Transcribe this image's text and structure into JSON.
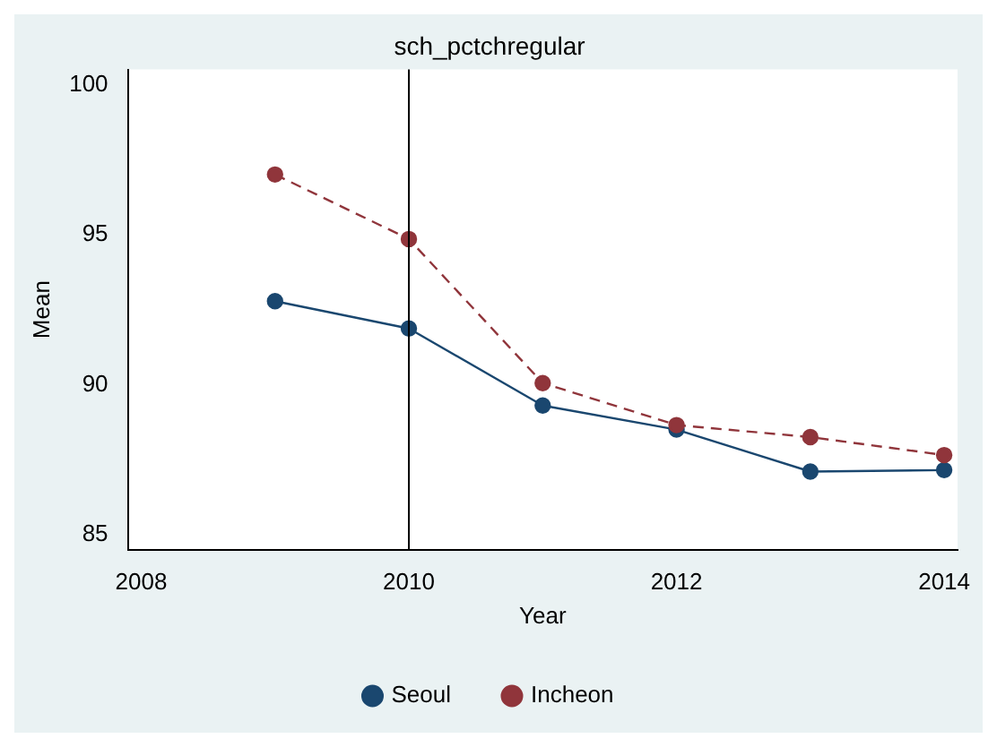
{
  "chart_data": {
    "type": "line",
    "title": "sch_pctchregular",
    "xlabel": "Year",
    "ylabel": "Mean",
    "x": [
      2009,
      2010,
      2011,
      2012,
      2013,
      2014
    ],
    "series": [
      {
        "name": "Seoul",
        "color": "#1a476f",
        "values": [
          92.78,
          91.87,
          89.3,
          88.5,
          87.1,
          87.15
        ],
        "line_style": "solid"
      },
      {
        "name": "Incheon",
        "color": "#90353b",
        "values": [
          97.0,
          94.85,
          90.05,
          88.65,
          88.25,
          87.65
        ],
        "line_style": "dashed"
      }
    ],
    "xlim": [
      2007.9,
      2014.1
    ],
    "xticks": [
      2008,
      2010,
      2012,
      2014
    ],
    "ylim": [
      84.5,
      100.5
    ],
    "yticks": [
      85,
      90,
      95,
      100
    ],
    "ref_lines": [
      {
        "axis": "x",
        "value": 2010,
        "color": "#000000"
      }
    ],
    "grid": false,
    "legend": "bottom",
    "marker": "circle"
  }
}
